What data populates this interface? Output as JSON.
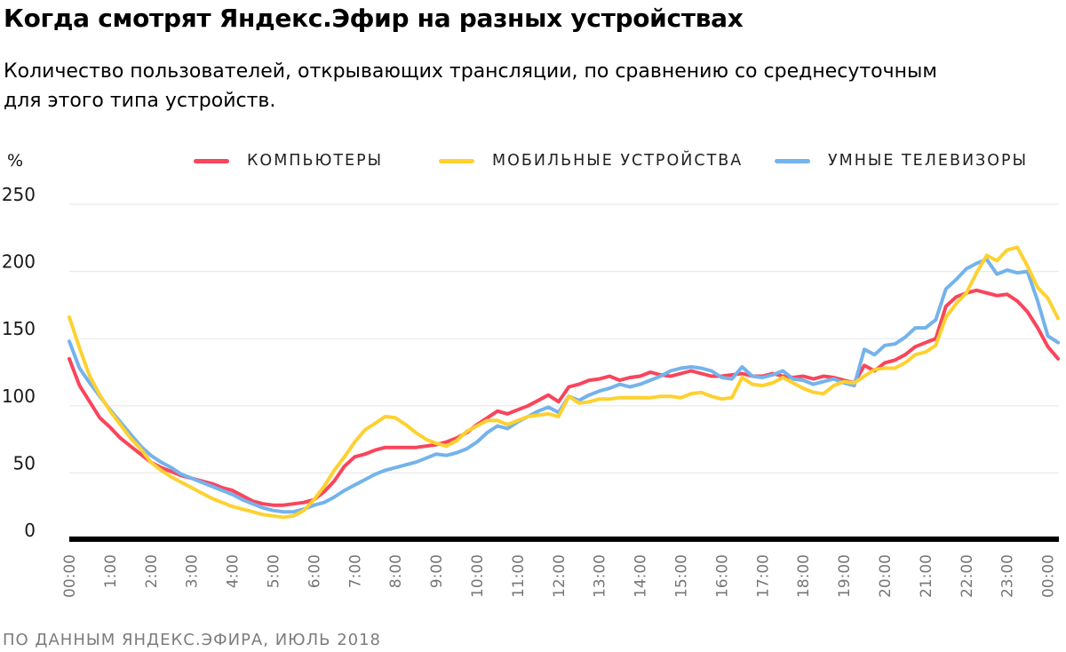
{
  "page": {
    "title": "Когда смотрят Яндекс.Эфир на разных устройствах",
    "subtitle_line1": "Количество пользователей, открывающих трансляции, по сравнению со среднесуточным",
    "subtitle_line2": "для этого типа устройств.",
    "unit_label": "%",
    "footer": "ПО ДАННЫМ ЯНДЕКС.ЭФИРА, ИЮЛЬ 2018"
  },
  "legend": [
    {
      "label": "КОМПЬЮТЕРЫ",
      "color": "#f9455c"
    },
    {
      "label": "МОБИЛЬНЫЕ УСТРОЙСТВА",
      "color": "#fdd130"
    },
    {
      "label": "УМНЫЕ ТЕЛЕВИЗОРЫ",
      "color": "#74b3eb"
    }
  ],
  "colors": {
    "gridline": "#e9e9e9",
    "axis": "#000000",
    "x_tick_text": "#767676",
    "y_tick_text": "#191919"
  },
  "chart_data": {
    "type": "line",
    "title": "Когда смотрят Яндекс.Эфир на разных устройствах",
    "ylabel": "%",
    "ylim": [
      0,
      250
    ],
    "xlim_hours": [
      0,
      24.25
    ],
    "x_step_hours": 0.25,
    "grid": true,
    "legend_position": "top",
    "x_ticks": [
      "00:00",
      "1:00",
      "2:00",
      "3:00",
      "4:00",
      "5:00",
      "6:00",
      "7:00",
      "8:00",
      "9:00",
      "10:00",
      "11:00",
      "12:00",
      "13:00",
      "14:00",
      "15:00",
      "16:00",
      "17:00",
      "18:00",
      "19:00",
      "20:00",
      "21:00",
      "22:00",
      "23:00",
      "00:00"
    ],
    "y_ticks": [
      "0",
      "50",
      "100",
      "150",
      "200",
      "250"
    ],
    "series": [
      {
        "name": "КОМПЬЮТЕРЫ",
        "color": "#f9455c",
        "values": [
          135,
          115,
          103,
          91,
          84,
          76,
          70,
          64,
          58,
          54,
          51,
          48,
          46,
          44,
          42,
          39,
          37,
          33,
          29,
          27,
          26,
          26,
          27,
          28,
          30,
          36,
          44,
          55,
          62,
          64,
          67,
          69,
          69,
          69,
          69,
          70,
          71,
          73,
          76,
          80,
          86,
          91,
          96,
          94,
          97,
          100,
          104,
          108,
          103,
          114,
          116,
          119,
          120,
          122,
          119,
          121,
          122,
          125,
          123,
          122,
          124,
          126,
          124,
          122,
          122,
          123,
          124,
          122,
          122,
          124,
          122,
          121,
          122,
          120,
          122,
          121,
          119,
          117,
          130,
          126,
          132,
          134,
          138,
          144,
          147,
          150,
          174,
          181,
          184,
          186,
          184,
          182,
          183,
          178,
          170,
          158,
          144,
          135
        ]
      },
      {
        "name": "УМНЫЕ ТЕЛЕВИЗОРЫ",
        "color": "#74b3eb",
        "values": [
          148,
          128,
          117,
          107,
          97,
          88,
          79,
          70,
          63,
          58,
          54,
          49,
          46,
          43,
          40,
          37,
          34,
          30,
          27,
          24,
          22,
          21,
          21,
          23,
          26,
          28,
          32,
          37,
          41,
          45,
          49,
          52,
          54,
          56,
          58,
          61,
          64,
          63,
          65,
          68,
          73,
          80,
          85,
          83,
          88,
          92,
          96,
          99,
          95,
          107,
          104,
          108,
          111,
          113,
          116,
          114,
          116,
          119,
          122,
          126,
          128,
          129,
          128,
          126,
          121,
          120,
          129,
          122,
          121,
          123,
          126,
          120,
          119,
          116,
          118,
          120,
          117,
          115,
          142,
          138,
          145,
          146,
          151,
          158,
          158,
          164,
          187,
          194,
          202,
          206,
          209,
          198,
          201,
          199,
          200,
          178,
          152,
          147
        ]
      },
      {
        "name": "МОБИЛЬНЫЕ УСТРОЙСТВА",
        "color": "#fdd130",
        "values": [
          166,
          143,
          122,
          108,
          96,
          86,
          76,
          68,
          58,
          52,
          47,
          43,
          39,
          35,
          31,
          28,
          25,
          23,
          21,
          19,
          18,
          17,
          18,
          22,
          30,
          40,
          52,
          62,
          73,
          82,
          87,
          92,
          91,
          86,
          80,
          75,
          72,
          70,
          74,
          81,
          85,
          89,
          89,
          86,
          89,
          92,
          93,
          94,
          92,
          107,
          102,
          103,
          105,
          105,
          106,
          106,
          106,
          106,
          107,
          107,
          106,
          109,
          110,
          107,
          105,
          106,
          121,
          116,
          115,
          117,
          121,
          117,
          113,
          110,
          109,
          115,
          118,
          117,
          122,
          127,
          128,
          128,
          132,
          138,
          140,
          145,
          166,
          176,
          184,
          199,
          212,
          208,
          216,
          218,
          204,
          188,
          180,
          165
        ]
      }
    ]
  }
}
